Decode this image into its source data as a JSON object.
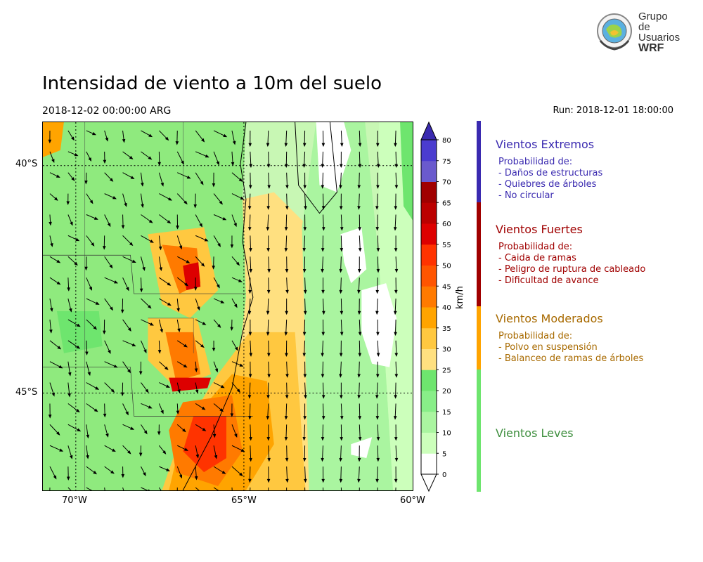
{
  "header": {
    "title": "Intensidad de viento a 10m del suelo",
    "valid_time": "2018-12-02 00:00:00 ARG",
    "run": "Run: 2018-12-01 18:00:00"
  },
  "logo": {
    "line1": "Grupo de",
    "line2": "Usuarios",
    "line3": "WRF"
  },
  "map": {
    "lat_labels": [
      "40°S",
      "45°S"
    ],
    "lon_labels": [
      "70°W",
      "65°W",
      "60°W"
    ]
  },
  "colorbar": {
    "unit": "km/h",
    "ticks": [
      "0",
      "5",
      "10",
      "15",
      "20",
      "25",
      "30",
      "35",
      "40",
      "45",
      "50",
      "55",
      "60",
      "65",
      "70",
      "75",
      "80"
    ],
    "colors": [
      "#ffffff",
      "#ccffbb",
      "#aaf5a0",
      "#88ee88",
      "#6ee56e",
      "#ffe080",
      "#ffc840",
      "#ffa400",
      "#ff7a00",
      "#ff5500",
      "#ff3300",
      "#dd0000",
      "#bb0000",
      "#a00000",
      "#6a5acd",
      "#4b3ccf",
      "#3a2ab0"
    ],
    "over_color": "#3a2ab0"
  },
  "categories": [
    {
      "title": "Vientos Extremos",
      "color": "#3a2ab0",
      "lines": [
        "Probabilidad de:",
        "- Daños de estructuras",
        "- Quiebres de árboles",
        "- No circular"
      ]
    },
    {
      "title": "Vientos Fuertes",
      "color": "#a00000",
      "lines": [
        "Probabilidad de:",
        "- Caida de ramas",
        "- Peligro de ruptura de cableado",
        "- Dificultad de avance"
      ]
    },
    {
      "title": "Vientos Moderados",
      "color": "#a86a00",
      "lines": [
        "Probabilidad de:",
        "- Polvo en suspensión",
        "- Balanceo de ramas de árboles"
      ]
    },
    {
      "title": "Vientos Leves",
      "color": "#3f8f3f",
      "lines": []
    }
  ]
}
